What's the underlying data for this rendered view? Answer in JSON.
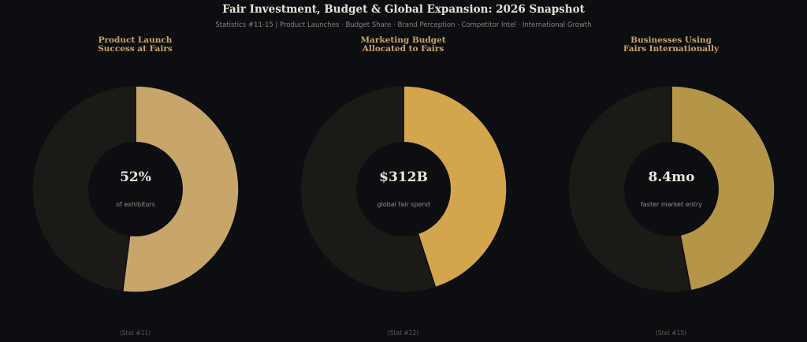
{
  "header": {
    "title": "Fair Investment, Budget & Global Expansion: 2026 Snapshot",
    "subtitle": "Statistics #11-15  |  Product Launches · Budget Share · Brand Perception · Competitor Intel · International Growth"
  },
  "chart_data": [
    {
      "type": "pie",
      "title_line1": "Product Launch",
      "title_line2": "Success at Fairs",
      "center_value": "52%",
      "center_label": "of exhibitors",
      "footer": "(Stat #11)",
      "slices": [
        {
          "value": 52,
          "color": "#c8a56a"
        },
        {
          "value": 48,
          "color": "#1c1a16"
        }
      ]
    },
    {
      "type": "pie",
      "title_line1": "Marketing Budget",
      "title_line2": "Allocated to Fairs",
      "center_value": "$312B",
      "center_label": "global fair spend",
      "footer": "(Stat #12)",
      "slices": [
        {
          "value": 45,
          "color": "#d3a64d"
        },
        {
          "value": 55,
          "color": "#1c1a16"
        }
      ]
    },
    {
      "type": "pie",
      "title_line1": "Businesses Using",
      "title_line2": "Fairs Internationally",
      "center_value": "8.4mo",
      "center_label": "faster market entry",
      "footer": "(Stat #15)",
      "slices": [
        {
          "value": 47,
          "color": "#b59548"
        },
        {
          "value": 53,
          "color": "#1c1a16"
        }
      ]
    }
  ]
}
